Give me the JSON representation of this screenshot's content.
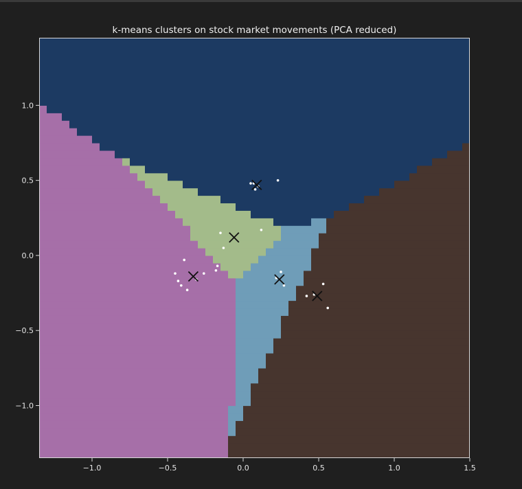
{
  "chart_data": {
    "type": "scatter",
    "title": "k-means clusters on stock market movements (PCA reduced)",
    "xlabel": "",
    "ylabel": "",
    "xlim": [
      -1.35,
      1.5
    ],
    "ylim": [
      -1.35,
      1.45
    ],
    "x_ticks": [
      -1.0,
      -0.5,
      0.0,
      0.5,
      1.0,
      1.5
    ],
    "x_tick_labels": [
      "−1.0",
      "−0.5",
      "0.0",
      "0.5",
      "1.0",
      "1.5"
    ],
    "y_ticks": [
      -1.0,
      -0.5,
      0.0,
      0.5,
      1.0
    ],
    "y_tick_labels": [
      "−1.0",
      "−0.5",
      "0.0",
      "0.5",
      "1.0"
    ],
    "grid": false,
    "background_regions": [
      {
        "cluster": 0,
        "color": "#1c3a62"
      },
      {
        "cluster": 1,
        "color": "#a66fa8"
      },
      {
        "cluster": 2,
        "color": "#a3bb8a"
      },
      {
        "cluster": 3,
        "color": "#6f9db8"
      },
      {
        "cluster": 4,
        "color": "#47352e"
      }
    ],
    "centroids": [
      {
        "x": 0.09,
        "y": 0.47
      },
      {
        "x": -0.33,
        "y": -0.14
      },
      {
        "x": -0.06,
        "y": 0.12
      },
      {
        "x": 0.24,
        "y": -0.16
      },
      {
        "x": 0.49,
        "y": -0.27
      }
    ],
    "points": [
      {
        "x": 0.05,
        "y": 0.48
      },
      {
        "x": 0.07,
        "y": 0.48
      },
      {
        "x": 0.08,
        "y": 0.44
      },
      {
        "x": 0.23,
        "y": 0.5
      },
      {
        "x": 0.1,
        "y": 0.46
      },
      {
        "x": -0.39,
        "y": -0.03
      },
      {
        "x": -0.45,
        "y": -0.12
      },
      {
        "x": -0.43,
        "y": -0.17
      },
      {
        "x": -0.41,
        "y": -0.2
      },
      {
        "x": -0.37,
        "y": -0.23
      },
      {
        "x": -0.26,
        "y": -0.12
      },
      {
        "x": -0.31,
        "y": -0.16
      },
      {
        "x": -0.15,
        "y": 0.15
      },
      {
        "x": 0.12,
        "y": 0.17
      },
      {
        "x": -0.13,
        "y": 0.05
      },
      {
        "x": -0.17,
        "y": -0.07
      },
      {
        "x": -0.18,
        "y": -0.1
      },
      {
        "x": 0.25,
        "y": -0.11
      },
      {
        "x": 0.22,
        "y": -0.15
      },
      {
        "x": 0.27,
        "y": -0.2
      },
      {
        "x": 0.42,
        "y": -0.27
      },
      {
        "x": 0.47,
        "y": -0.26
      },
      {
        "x": 0.53,
        "y": -0.19
      },
      {
        "x": 0.56,
        "y": -0.35
      }
    ],
    "colors": {
      "figure_bg": "#1f1f1f",
      "spine": "#d9d9d9",
      "point": "#ffffff",
      "centroid": "#111111"
    }
  }
}
